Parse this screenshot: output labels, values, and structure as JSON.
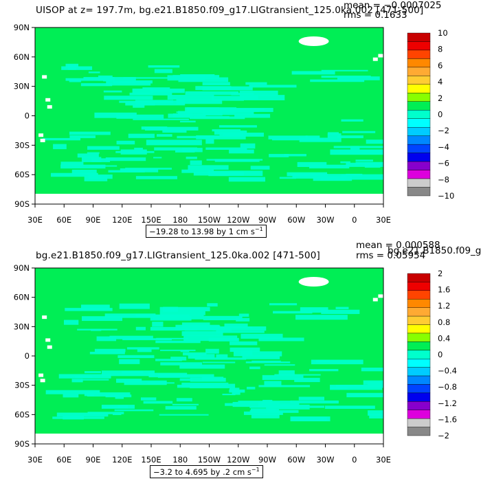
{
  "charts": [
    {
      "title": "UISOP at z=  197.7m, bg.e21.B1850.f09_g17.LIGtransient_125.0ka.002 [471-500]",
      "mean_label": "mean = −0.0007025",
      "rms_label": "rms = 0.1633",
      "range_label": "−19.28 to 13.98 by 1 cm s",
      "range_exp": "−1",
      "colorbar_labels": [
        "10",
        "8",
        "6",
        "4",
        "2",
        "0",
        "−2",
        "−4",
        "−6",
        "−8",
        "−10"
      ]
    },
    {
      "title": "bg.e21.B1850.f09_g17.LIGtransient_125.0ka.002 [471-500]",
      "mean_label": "mean = 0.000588",
      "rms_label": "rms = 0.05954",
      "overlap_text": "bg.e21.B1850.f09_g1",
      "range_label": "−3.2 to 4.695 by .2 cm s",
      "range_exp": "−1",
      "colorbar_labels": [
        "2",
        "1.6",
        "1.2",
        "0.8",
        "0.4",
        "0",
        "−0.4",
        "−0.8",
        "−1.2",
        "−1.6",
        "−2"
      ]
    }
  ],
  "axes": {
    "lat_labels": [
      "90N",
      "60N",
      "30N",
      "0",
      "30S",
      "60S",
      "90S"
    ],
    "lon_labels": [
      "30E",
      "60E",
      "90E",
      "120E",
      "150E",
      "180",
      "150W",
      "120W",
      "90W",
      "60W",
      "30W",
      "0",
      "30E"
    ]
  },
  "colors": {
    "ocean_main": "#00ee55",
    "ocean_alt": "#00ffcc",
    "land": "#ffffff",
    "colorbar": [
      "#c80000",
      "#ee0000",
      "#ff4400",
      "#ff8800",
      "#ffaa33",
      "#ffcc33",
      "#ffff00",
      "#88ff00",
      "#00ee55",
      "#00ffcc",
      "#00ffff",
      "#00ccff",
      "#0088ff",
      "#0044ff",
      "#0000ee",
      "#8800cc",
      "#dd00dd",
      "#cccccc",
      "#888888"
    ]
  },
  "chart_data": [
    {
      "type": "heatmap",
      "title": "UISOP at z=  197.7m, bg.e21.B1850.f09_g17.LIGtransient_125.0ka.002 [471-500]",
      "xlabel": "",
      "ylabel": "",
      "x_ticks": [
        "30E",
        "60E",
        "90E",
        "120E",
        "150E",
        "180",
        "150W",
        "120W",
        "90W",
        "60W",
        "30W",
        "0",
        "30E"
      ],
      "y_ticks": [
        "90N",
        "60N",
        "30N",
        "0",
        "30S",
        "60S",
        "90S"
      ],
      "value_range": [
        -19.28,
        13.98
      ],
      "contour_interval": 1,
      "units": "cm s-1",
      "colorbar_ticks": [
        10,
        8,
        6,
        4,
        2,
        0,
        -2,
        -4,
        -6,
        -8,
        -10
      ],
      "mean": -0.0007025,
      "rms": 0.1633
    },
    {
      "type": "heatmap",
      "title": "bg.e21.B1850.f09_g17.LIGtransient_125.0ka.002 [471-500]",
      "xlabel": "",
      "ylabel": "",
      "x_ticks": [
        "30E",
        "60E",
        "90E",
        "120E",
        "150E",
        "180",
        "150W",
        "120W",
        "90W",
        "60W",
        "30W",
        "0",
        "30E"
      ],
      "y_ticks": [
        "90N",
        "60N",
        "30N",
        "0",
        "30S",
        "60S",
        "90S"
      ],
      "value_range": [
        -3.2,
        4.695
      ],
      "contour_interval": 0.2,
      "units": "cm s-1",
      "colorbar_ticks": [
        2,
        1.6,
        1.2,
        0.8,
        0.4,
        0,
        -0.4,
        -0.8,
        -1.2,
        -1.6,
        -2
      ],
      "mean": 0.000588,
      "rms": 0.05954
    }
  ]
}
